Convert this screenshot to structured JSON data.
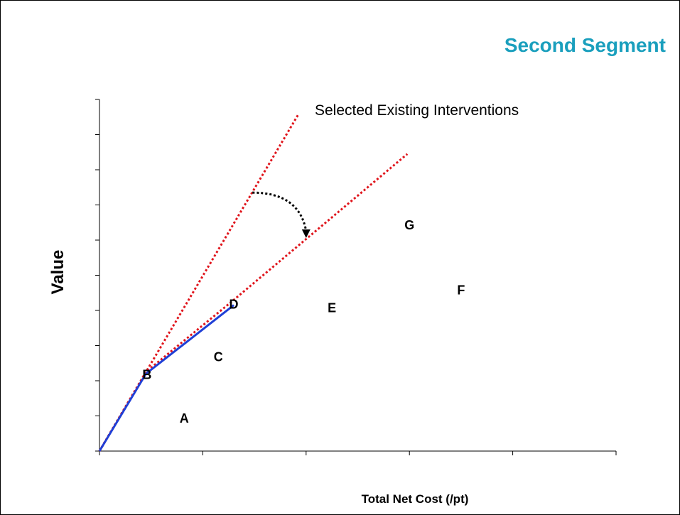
{
  "slide": {
    "title": "Second Segment",
    "title_color": "#1a9fbd"
  },
  "chart_data": {
    "type": "scatter",
    "title": "",
    "xlabel": "Total Net Cost (/pt)",
    "ylabel": "Value",
    "xlim": [
      0,
      5
    ],
    "ylim": [
      0,
      10
    ],
    "x_ticks": [
      0,
      1,
      2,
      3,
      4,
      5
    ],
    "y_ticks": [
      0,
      1,
      2,
      3,
      4,
      5,
      6,
      7,
      8,
      9,
      10
    ],
    "tick_labels_shown": false,
    "grid": false,
    "points": [
      {
        "label": "A",
        "x": 0.82,
        "y": 0.9
      },
      {
        "label": "B",
        "x": 0.46,
        "y": 2.15
      },
      {
        "label": "C",
        "x": 1.15,
        "y": 2.65
      },
      {
        "label": "D",
        "x": 1.3,
        "y": 4.15
      },
      {
        "label": "E",
        "x": 2.25,
        "y": 4.05
      },
      {
        "label": "F",
        "x": 3.5,
        "y": 4.55
      },
      {
        "label": "G",
        "x": 3.0,
        "y": 6.4
      }
    ],
    "frontier": {
      "color": "#1f3fd6",
      "points": [
        [
          0,
          0
        ],
        [
          0.45,
          2.2
        ],
        [
          1.3,
          4.15
        ]
      ]
    },
    "reference_lines": [
      {
        "color": "#e0151c",
        "style": "dotted",
        "points": [
          [
            0,
            0
          ],
          [
            0.45,
            2.25
          ],
          [
            1.93,
            9.6
          ]
        ]
      },
      {
        "color": "#e0151c",
        "style": "dotted",
        "points": [
          [
            0,
            0
          ],
          [
            0.45,
            2.25
          ],
          [
            1.3,
            4.3
          ],
          [
            2.98,
            8.45
          ]
        ]
      }
    ],
    "arrow": {
      "color": "#000000",
      "style": "dotted",
      "from": [
        1.48,
        7.35
      ],
      "to": [
        2.0,
        6.1
      ]
    },
    "annotation": "Selected Existing Interventions",
    "axis_color": "#000000"
  }
}
